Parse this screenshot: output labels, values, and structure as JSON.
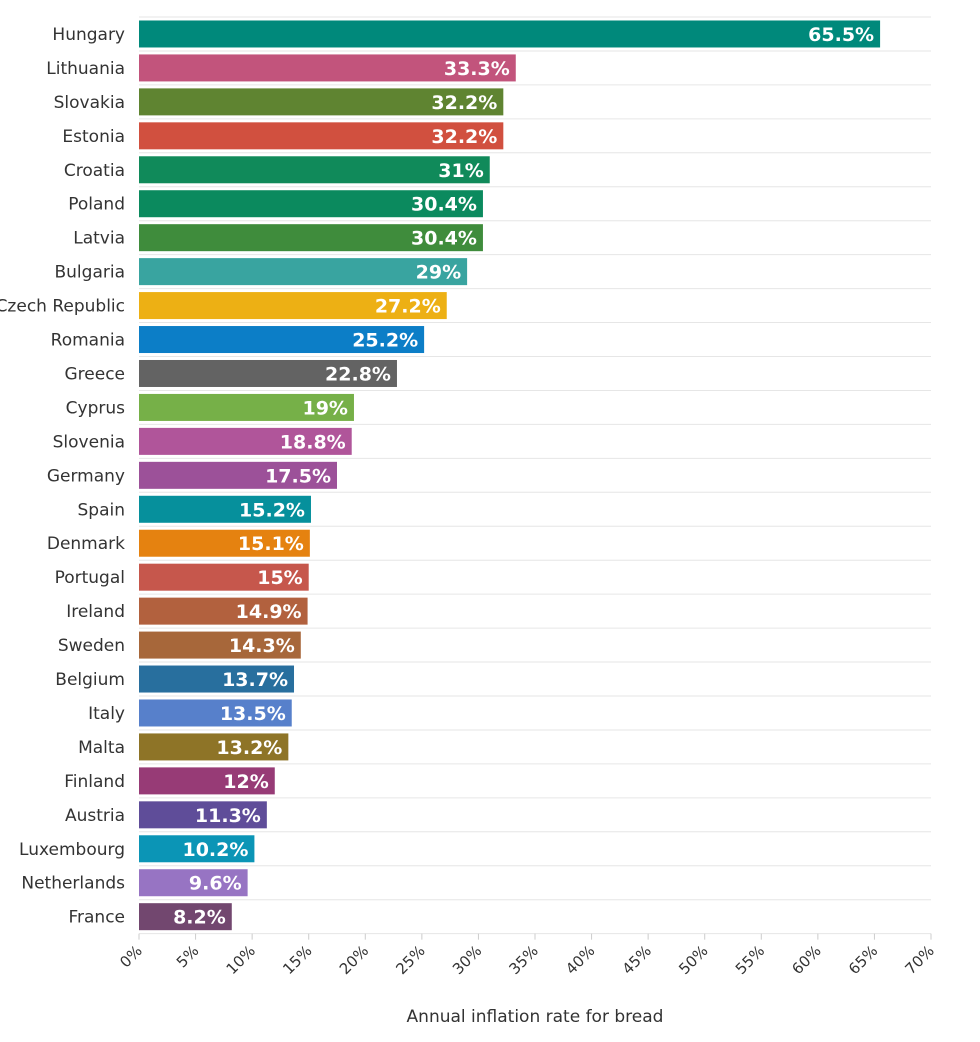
{
  "chart_data": {
    "type": "bar",
    "orientation": "horizontal",
    "title": "",
    "xlabel": "Annual inflation rate for bread",
    "ylabel": "",
    "xlim": [
      0,
      70
    ],
    "xticks": [
      0,
      5,
      10,
      15,
      20,
      25,
      30,
      35,
      40,
      45,
      50,
      55,
      60,
      65,
      70
    ],
    "tick_suffix": "%",
    "grid": true,
    "legend": "none",
    "categories": [
      "Hungary",
      "Lithuania",
      "Slovakia",
      "Estonia",
      "Croatia",
      "Poland",
      "Latvia",
      "Bulgaria",
      "Czech Republic",
      "Romania",
      "Greece",
      "Cyprus",
      "Slovenia",
      "Germany",
      "Spain",
      "Denmark",
      "Portugal",
      "Ireland",
      "Sweden",
      "Belgium",
      "Italy",
      "Malta",
      "Finland",
      "Austria",
      "Luxembourg",
      "Netherlands",
      "France"
    ],
    "values": [
      65.5,
      33.3,
      32.2,
      32.2,
      31,
      30.4,
      30.4,
      29,
      27.2,
      25.2,
      22.8,
      19,
      18.8,
      17.5,
      15.2,
      15.1,
      15,
      14.9,
      14.3,
      13.7,
      13.5,
      13.2,
      12,
      11.3,
      10.2,
      9.6,
      8.2
    ],
    "value_labels": [
      "65.5%",
      "33.3%",
      "32.2%",
      "32.2%",
      "31%",
      "30.4%",
      "30.4%",
      "29%",
      "27.2%",
      "25.2%",
      "22.8%",
      "19%",
      "18.8%",
      "17.5%",
      "15.2%",
      "15.1%",
      "15%",
      "14.9%",
      "14.3%",
      "13.7%",
      "13.5%",
      "13.2%",
      "12%",
      "11.3%",
      "10.2%",
      "9.6%",
      "8.2%"
    ],
    "colors": [
      "#00897b",
      "#c2547c",
      "#5f8431",
      "#d1503f",
      "#108a5a",
      "#0b8a5e",
      "#3f8c3c",
      "#39a4a0",
      "#edb014",
      "#0c7ec7",
      "#636363",
      "#76b048",
      "#b0559a",
      "#9c5199",
      "#06909c",
      "#e58210",
      "#c6574c",
      "#b2613e",
      "#a7673a",
      "#286f9e",
      "#5780cb",
      "#8e7427",
      "#973b76",
      "#5f4d99",
      "#0b95b6",
      "#9774c3",
      "#72476f"
    ]
  }
}
